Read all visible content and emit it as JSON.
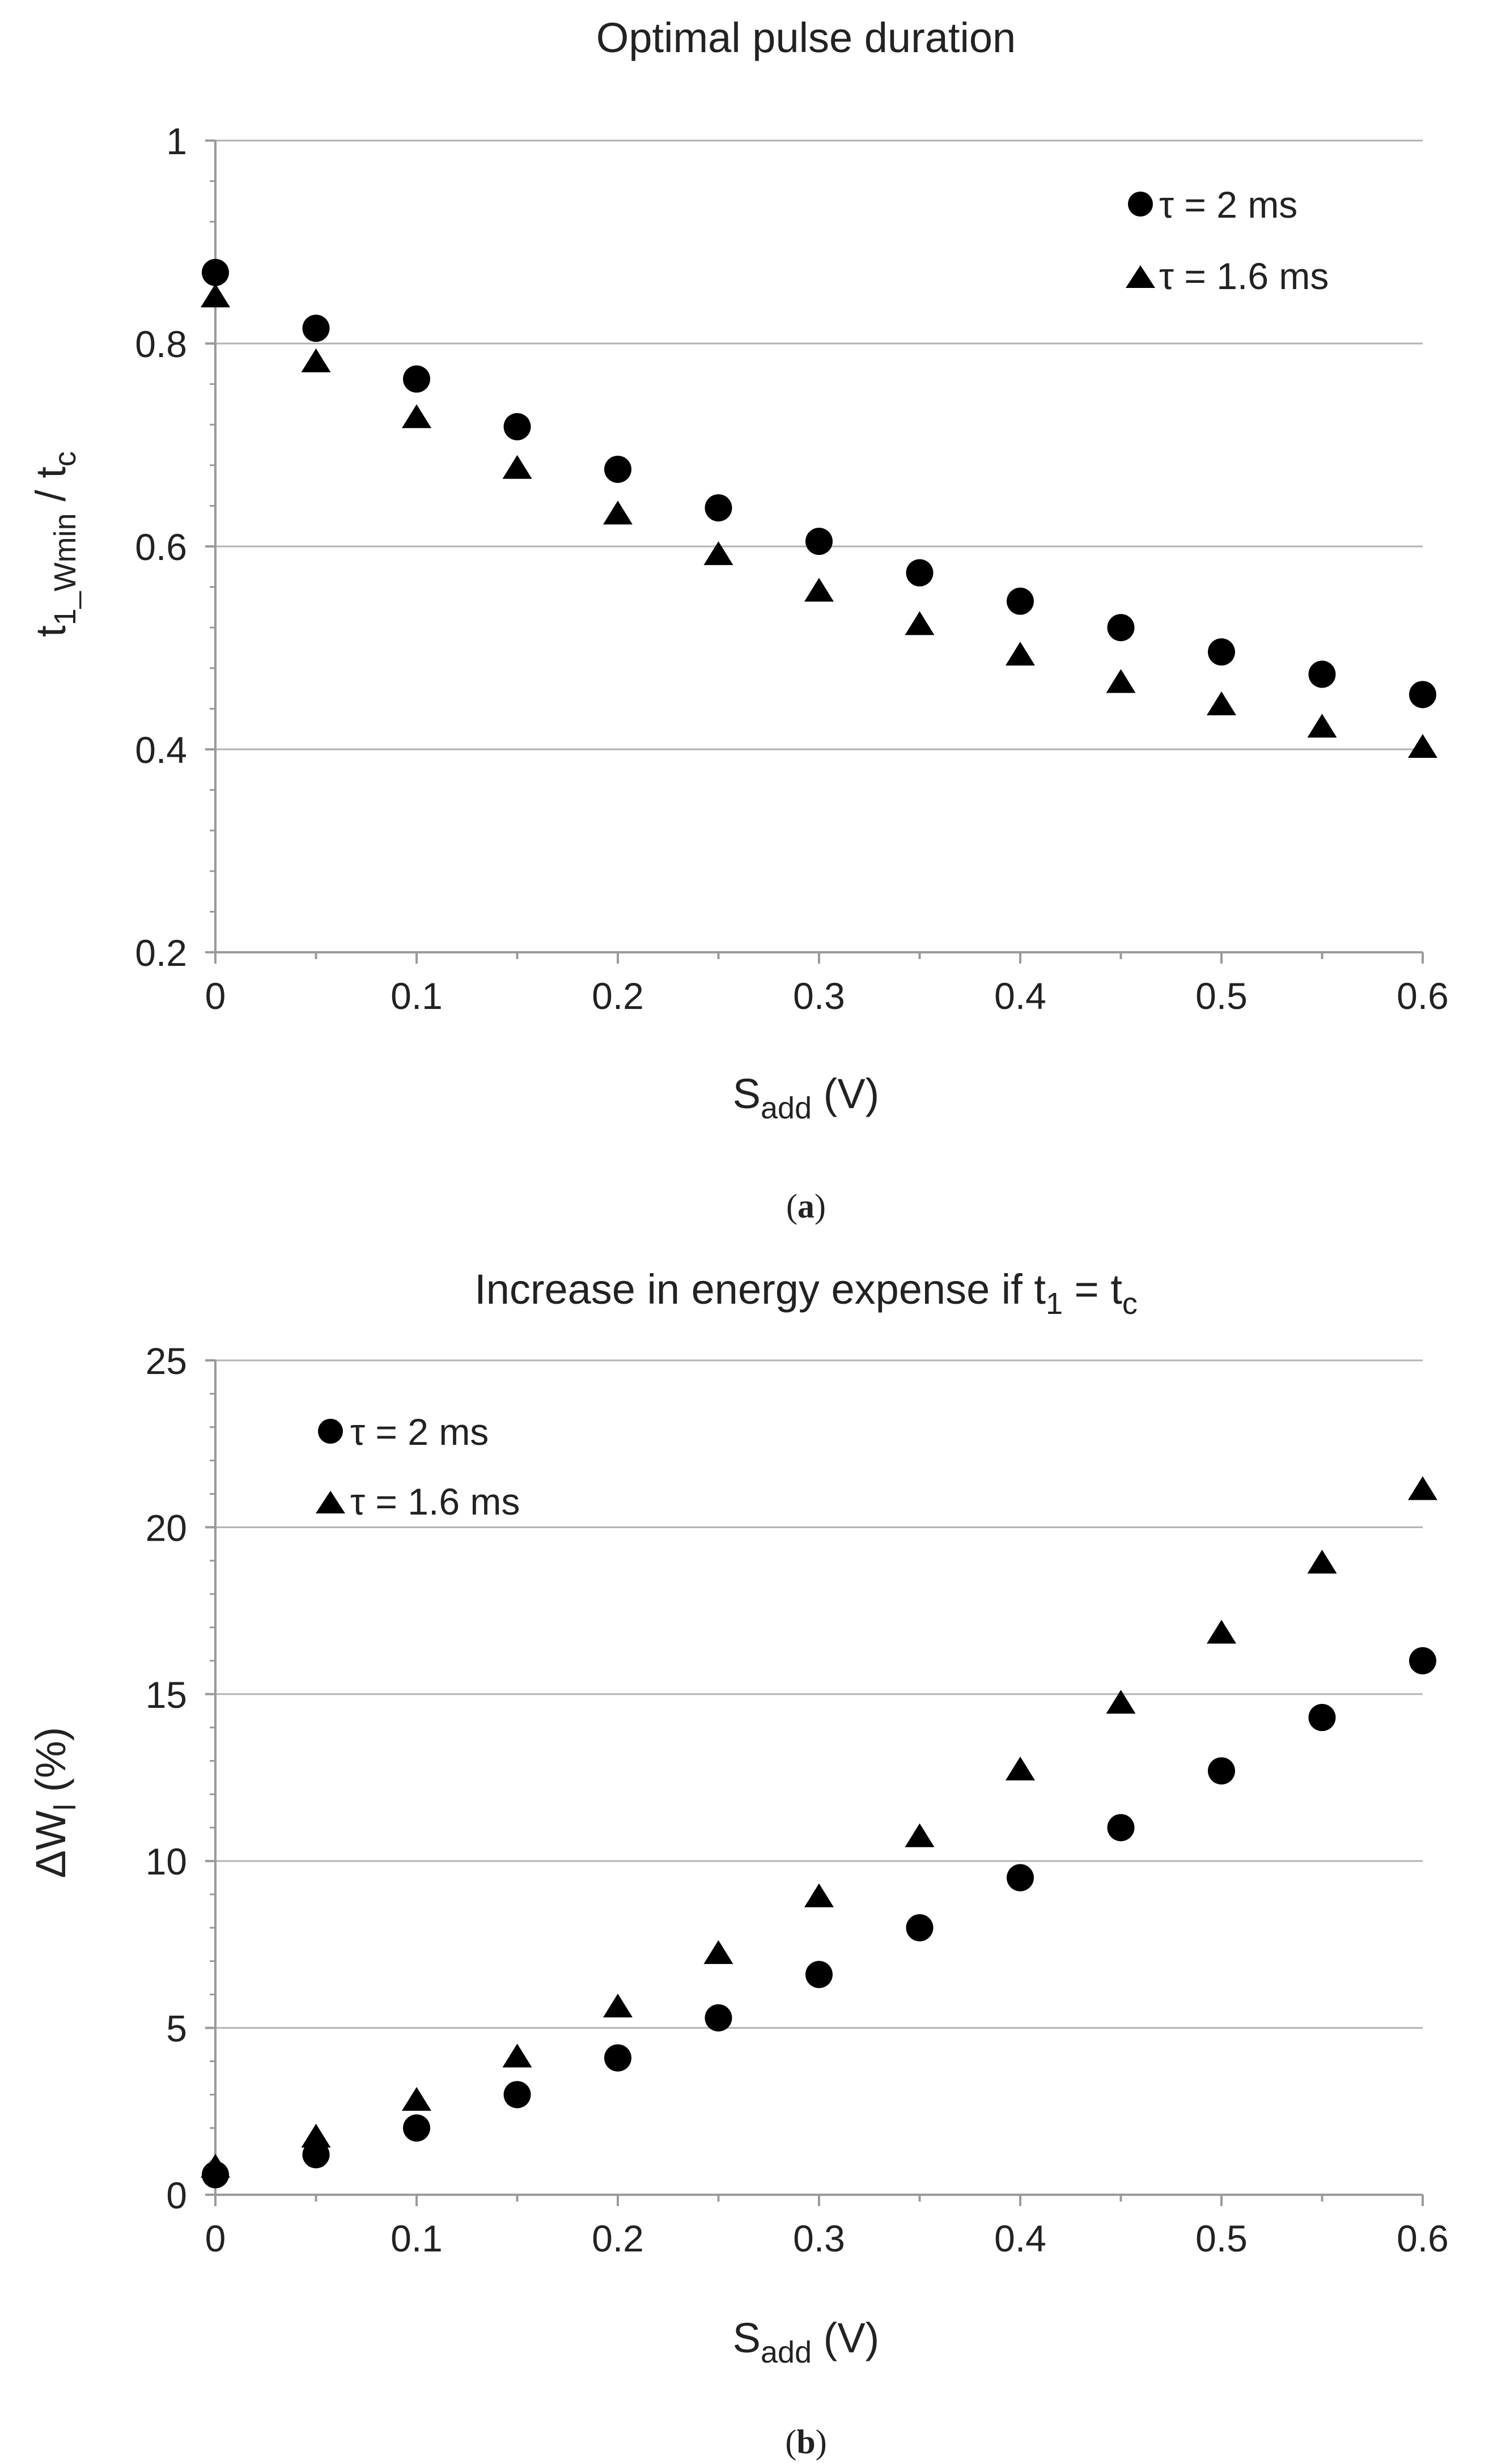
{
  "figure": {
    "colors": {
      "marker": "#000000",
      "grid": "#b3b3b3",
      "axis": "#9a9a9a",
      "text": "#222222"
    },
    "panels": [
      {
        "id": "a",
        "caption": "a",
        "title": "Optimal pulse duration",
        "title_subscript_parts": [],
        "xlabel": {
          "main": "S",
          "sub": "add",
          "rest": " (V)"
        },
        "ylabel": {
          "main": "t",
          "sub": "1_Wmin",
          "mid": " / t",
          "sub2": "c"
        },
        "xlim": [
          0,
          0.6
        ],
        "ylim": [
          0.2,
          1.0
        ],
        "xticks": [
          0,
          0.1,
          0.2,
          0.3,
          0.4,
          0.5,
          0.6
        ],
        "xtick_labels": [
          "0",
          "0.1",
          "0.2",
          "0.3",
          "0.4",
          "0.5",
          "0.6"
        ],
        "yticks": [
          0.2,
          0.4,
          0.6,
          0.8,
          1.0
        ],
        "ytick_labels": [
          "0.2",
          "0.4",
          "0.6",
          "0.8",
          "1"
        ],
        "gridlines": [
          0.4,
          0.6,
          0.8,
          1.0
        ],
        "legend_position": "top-right",
        "x": [
          0,
          0.05,
          0.1,
          0.15,
          0.2,
          0.25,
          0.3,
          0.35,
          0.4,
          0.45,
          0.5,
          0.55,
          0.6
        ],
        "series": [
          {
            "name": "τ = 2 ms",
            "marker": "circle",
            "values": [
              0.87,
              0.815,
              0.765,
              0.718,
              0.676,
              0.638,
              0.605,
              0.574,
              0.546,
              0.52,
              0.496,
              0.474,
              0.454
            ]
          },
          {
            "name": "τ = 1.6 ms",
            "marker": "triangle",
            "values": [
              0.845,
              0.781,
              0.726,
              0.676,
              0.631,
              0.591,
              0.555,
              0.522,
              0.492,
              0.465,
              0.443,
              0.421,
              0.401
            ]
          }
        ]
      },
      {
        "id": "b",
        "caption": "b",
        "title": "Increase in energy expense if t",
        "title_parts": {
          "sub1": "1",
          "mid": " = t",
          "sub2": "c"
        },
        "xlabel": {
          "main": "S",
          "sub": "add",
          "rest": " (V)"
        },
        "ylabel": {
          "main": "ΔW",
          "sub": "l",
          "rest": " (%)"
        },
        "xlim": [
          0,
          0.6
        ],
        "ylim": [
          0,
          25
        ],
        "xticks": [
          0,
          0.1,
          0.2,
          0.3,
          0.4,
          0.5,
          0.6
        ],
        "xtick_labels": [
          "0",
          "0.1",
          "0.2",
          "0.3",
          "0.4",
          "0.5",
          "0.6"
        ],
        "yticks": [
          0,
          5,
          10,
          15,
          20,
          25
        ],
        "ytick_labels": [
          "0",
          "5",
          "10",
          "15",
          "20",
          "25"
        ],
        "gridlines": [
          5,
          10,
          15,
          20,
          25
        ],
        "legend_position": "top-left",
        "x": [
          0,
          0.05,
          0.1,
          0.15,
          0.2,
          0.25,
          0.3,
          0.35,
          0.4,
          0.45,
          0.5,
          0.55,
          0.6
        ],
        "series": [
          {
            "name": "τ = 2 ms",
            "marker": "circle",
            "values": [
              0.6,
              1.2,
              2.0,
              3.0,
              4.1,
              5.3,
              6.6,
              8.0,
              9.5,
              11.0,
              12.7,
              14.3,
              16.0
            ]
          },
          {
            "name": "τ = 1.6 ms",
            "marker": "triangle",
            "values": [
              0.8,
              1.7,
              2.8,
              4.1,
              5.6,
              7.2,
              8.9,
              10.7,
              12.7,
              14.7,
              16.8,
              18.9,
              21.1
            ]
          }
        ]
      }
    ]
  }
}
